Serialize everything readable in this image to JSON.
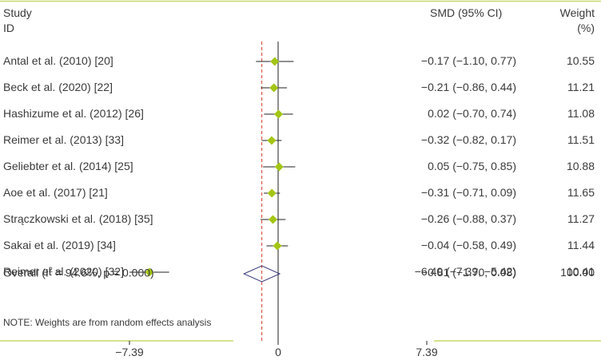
{
  "header": {
    "study_line1": "Study",
    "study_line2": "ID",
    "smd": "SMD (95% CI)",
    "weight_line1": "Weight",
    "weight_line2": "(%)"
  },
  "chart_data": {
    "type": "forest",
    "x_scale": {
      "min": -7.39,
      "max": 7.39,
      "null_line": 0
    },
    "overall_reference": -0.81,
    "studies": [
      {
        "id": "Antal et al. (2010) [20]",
        "smd": -0.17,
        "lo": -1.1,
        "hi": 0.77,
        "ci_text": "−0.17 (−1.10, 0.77)",
        "weight_text": "10.55"
      },
      {
        "id": "Beck et al. (2020) [22]",
        "smd": -0.21,
        "lo": -0.86,
        "hi": 0.44,
        "ci_text": "−0.21 (−0.86, 0.44)",
        "weight_text": "11.21"
      },
      {
        "id": "Hashizume et al. (2012) [26]",
        "smd": 0.02,
        "lo": -0.7,
        "hi": 0.74,
        "ci_text": "0.02 (−0.70, 0.74)",
        "weight_text": "11.08"
      },
      {
        "id": "Reimer et al. (2013) [33]",
        "smd": -0.32,
        "lo": -0.82,
        "hi": 0.17,
        "ci_text": "−0.32 (−0.82, 0.17)",
        "weight_text": "11.51"
      },
      {
        "id": "Geliebter et al. (2014) [25]",
        "smd": 0.05,
        "lo": -0.75,
        "hi": 0.85,
        "ci_text": "0.05 (−0.75, 0.85)",
        "weight_text": "10.88"
      },
      {
        "id": "Aoe et al. (2017) [21]",
        "smd": -0.31,
        "lo": -0.71,
        "hi": 0.09,
        "ci_text": "−0.31 (−0.71, 0.09)",
        "weight_text": "11.65"
      },
      {
        "id": "Strączkowski et al. (2018) [35]",
        "smd": -0.26,
        "lo": -0.88,
        "hi": 0.37,
        "ci_text": "−0.26 (−0.88, 0.37)",
        "weight_text": "11.27"
      },
      {
        "id": "Sakai et al. (2019) [34]",
        "smd": -0.04,
        "lo": -0.58,
        "hi": 0.49,
        "ci_text": "−0.04 (−0.58, 0.49)",
        "weight_text": "11.44"
      },
      {
        "id": "Reimer et al. (2020) [32]",
        "smd": -6.4,
        "lo": -7.39,
        "hi": -5.42,
        "ci_text": "−6.40 (−7.39, −5.42)",
        "weight_text": "10.41"
      }
    ],
    "overall": {
      "label_prefix": "Overall (I",
      "label_sup": "2",
      "label_suffix": " = 94.6%, p = 0.000)",
      "smd": -0.81,
      "lo": -1.7,
      "hi": 0.08,
      "ci_text": "−0.81 (−1.70, 0.08)",
      "weight_text": "100.00"
    },
    "note": "NOTE: Weights are from random effects analysis",
    "x_ticks": [
      {
        "value": -7.39,
        "label": "−7.39"
      },
      {
        "value": 0,
        "label": "0"
      },
      {
        "value": 7.39,
        "label": "7.39"
      }
    ],
    "colors": {
      "marker": "#a3c614",
      "rule": "#c8d86a",
      "reference_line": "#d93a2b",
      "diamond": "#3a3a7a",
      "ink": "#3a3a3a"
    }
  }
}
